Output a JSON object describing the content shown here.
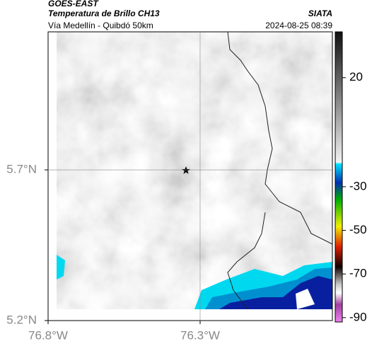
{
  "header": {
    "title": "GOES-EAST",
    "subtitle": "Temperatura de Brillo CH13",
    "location": "Vía Medellín - Quibdó 50km",
    "source": "SIATA",
    "datetime": "2024-08-25 08:39"
  },
  "map": {
    "xlim": [
      -76.8,
      -75.865
    ],
    "ylim": [
      5.2,
      6.158
    ],
    "xticks": [
      {
        "value": -76.8,
        "label": "76.8°W"
      },
      {
        "value": -76.3,
        "label": "76.3°W"
      }
    ],
    "yticks": [
      {
        "value": 5.7,
        "label": "5.7°N"
      },
      {
        "value": 5.2,
        "label": "5.2°N"
      }
    ],
    "grid_lines": [
      {
        "axis": "x",
        "value": -76.3
      },
      {
        "axis": "y",
        "value": 5.7
      }
    ]
  },
  "colorbar": {
    "lim": [
      -92,
      41
    ],
    "ticks": [
      20,
      -30,
      -50,
      -70,
      -90
    ]
  }
}
